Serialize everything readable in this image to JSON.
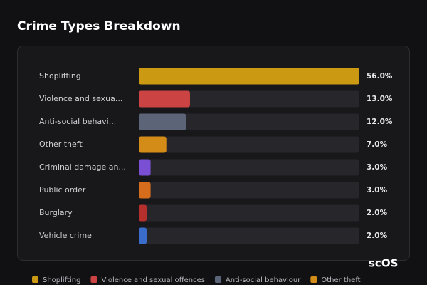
{
  "chart_data": {
    "type": "bar",
    "orientation": "horizontal",
    "title": "Crime Types Breakdown",
    "categories": [
      "Shoplifting",
      "Violence and sexua...",
      "Anti-social behavi...",
      "Other theft",
      "Criminal damage an...",
      "Public order",
      "Burglary",
      "Vehicle crime"
    ],
    "values": [
      56.0,
      13.0,
      12.0,
      7.0,
      3.0,
      3.0,
      2.0,
      2.0
    ],
    "value_labels": [
      "56.0%",
      "13.0%",
      "12.0%",
      "7.0%",
      "3.0%",
      "3.0%",
      "2.0%",
      "2.0%"
    ],
    "colors": [
      "#cc9a12",
      "#cc4343",
      "#5b6577",
      "#d38c17",
      "#7a4fd4",
      "#d56d1c",
      "#b5302d",
      "#3a6ccc"
    ],
    "legend": [
      {
        "name": "Shoplifting",
        "color": "#cc9a12"
      },
      {
        "name": "Violence and sexual offences",
        "color": "#cc4343"
      },
      {
        "name": "Anti-social behaviour",
        "color": "#5b6577"
      },
      {
        "name": "Other theft",
        "color": "#d38c17"
      }
    ],
    "logo": "scOS"
  }
}
